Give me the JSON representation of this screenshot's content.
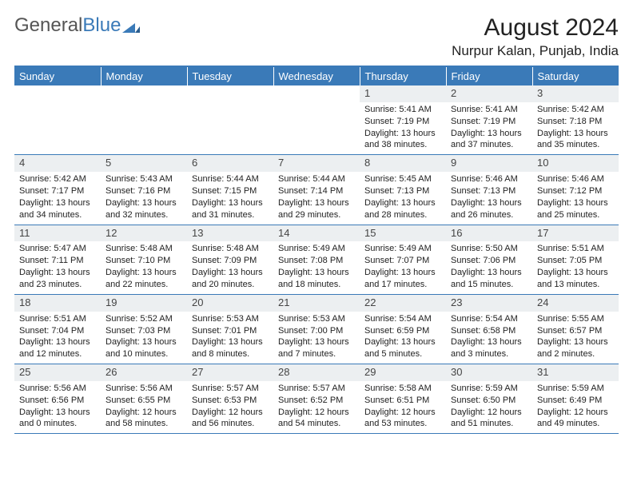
{
  "brand": {
    "part1": "General",
    "part2": "Blue"
  },
  "title": "August 2024",
  "location": "Nurpur Kalan, Punjab, India",
  "colors": {
    "accent": "#3a7ab8",
    "header_bg": "#3a7ab8",
    "header_text": "#ffffff",
    "daynum_bg": "#eceff1",
    "body_text": "#222222",
    "background": "#ffffff"
  },
  "day_headers": [
    "Sunday",
    "Monday",
    "Tuesday",
    "Wednesday",
    "Thursday",
    "Friday",
    "Saturday"
  ],
  "month": {
    "year": 2024,
    "month_name": "August",
    "first_weekday_index": 4,
    "days_in_month": 31
  },
  "days": {
    "1": {
      "sunrise": "5:41 AM",
      "sunset": "7:19 PM",
      "daylight": "13 hours and 38 minutes."
    },
    "2": {
      "sunrise": "5:41 AM",
      "sunset": "7:19 PM",
      "daylight": "13 hours and 37 minutes."
    },
    "3": {
      "sunrise": "5:42 AM",
      "sunset": "7:18 PM",
      "daylight": "13 hours and 35 minutes."
    },
    "4": {
      "sunrise": "5:42 AM",
      "sunset": "7:17 PM",
      "daylight": "13 hours and 34 minutes."
    },
    "5": {
      "sunrise": "5:43 AM",
      "sunset": "7:16 PM",
      "daylight": "13 hours and 32 minutes."
    },
    "6": {
      "sunrise": "5:44 AM",
      "sunset": "7:15 PM",
      "daylight": "13 hours and 31 minutes."
    },
    "7": {
      "sunrise": "5:44 AM",
      "sunset": "7:14 PM",
      "daylight": "13 hours and 29 minutes."
    },
    "8": {
      "sunrise": "5:45 AM",
      "sunset": "7:13 PM",
      "daylight": "13 hours and 28 minutes."
    },
    "9": {
      "sunrise": "5:46 AM",
      "sunset": "7:13 PM",
      "daylight": "13 hours and 26 minutes."
    },
    "10": {
      "sunrise": "5:46 AM",
      "sunset": "7:12 PM",
      "daylight": "13 hours and 25 minutes."
    },
    "11": {
      "sunrise": "5:47 AM",
      "sunset": "7:11 PM",
      "daylight": "13 hours and 23 minutes."
    },
    "12": {
      "sunrise": "5:48 AM",
      "sunset": "7:10 PM",
      "daylight": "13 hours and 22 minutes."
    },
    "13": {
      "sunrise": "5:48 AM",
      "sunset": "7:09 PM",
      "daylight": "13 hours and 20 minutes."
    },
    "14": {
      "sunrise": "5:49 AM",
      "sunset": "7:08 PM",
      "daylight": "13 hours and 18 minutes."
    },
    "15": {
      "sunrise": "5:49 AM",
      "sunset": "7:07 PM",
      "daylight": "13 hours and 17 minutes."
    },
    "16": {
      "sunrise": "5:50 AM",
      "sunset": "7:06 PM",
      "daylight": "13 hours and 15 minutes."
    },
    "17": {
      "sunrise": "5:51 AM",
      "sunset": "7:05 PM",
      "daylight": "13 hours and 13 minutes."
    },
    "18": {
      "sunrise": "5:51 AM",
      "sunset": "7:04 PM",
      "daylight": "13 hours and 12 minutes."
    },
    "19": {
      "sunrise": "5:52 AM",
      "sunset": "7:03 PM",
      "daylight": "13 hours and 10 minutes."
    },
    "20": {
      "sunrise": "5:53 AM",
      "sunset": "7:01 PM",
      "daylight": "13 hours and 8 minutes."
    },
    "21": {
      "sunrise": "5:53 AM",
      "sunset": "7:00 PM",
      "daylight": "13 hours and 7 minutes."
    },
    "22": {
      "sunrise": "5:54 AM",
      "sunset": "6:59 PM",
      "daylight": "13 hours and 5 minutes."
    },
    "23": {
      "sunrise": "5:54 AM",
      "sunset": "6:58 PM",
      "daylight": "13 hours and 3 minutes."
    },
    "24": {
      "sunrise": "5:55 AM",
      "sunset": "6:57 PM",
      "daylight": "13 hours and 2 minutes."
    },
    "25": {
      "sunrise": "5:56 AM",
      "sunset": "6:56 PM",
      "daylight": "13 hours and 0 minutes."
    },
    "26": {
      "sunrise": "5:56 AM",
      "sunset": "6:55 PM",
      "daylight": "12 hours and 58 minutes."
    },
    "27": {
      "sunrise": "5:57 AM",
      "sunset": "6:53 PM",
      "daylight": "12 hours and 56 minutes."
    },
    "28": {
      "sunrise": "5:57 AM",
      "sunset": "6:52 PM",
      "daylight": "12 hours and 54 minutes."
    },
    "29": {
      "sunrise": "5:58 AM",
      "sunset": "6:51 PM",
      "daylight": "12 hours and 53 minutes."
    },
    "30": {
      "sunrise": "5:59 AM",
      "sunset": "6:50 PM",
      "daylight": "12 hours and 51 minutes."
    },
    "31": {
      "sunrise": "5:59 AM",
      "sunset": "6:49 PM",
      "daylight": "12 hours and 49 minutes."
    }
  },
  "labels": {
    "sunrise_prefix": "Sunrise: ",
    "sunset_prefix": "Sunset: ",
    "daylight_prefix": "Daylight: "
  }
}
